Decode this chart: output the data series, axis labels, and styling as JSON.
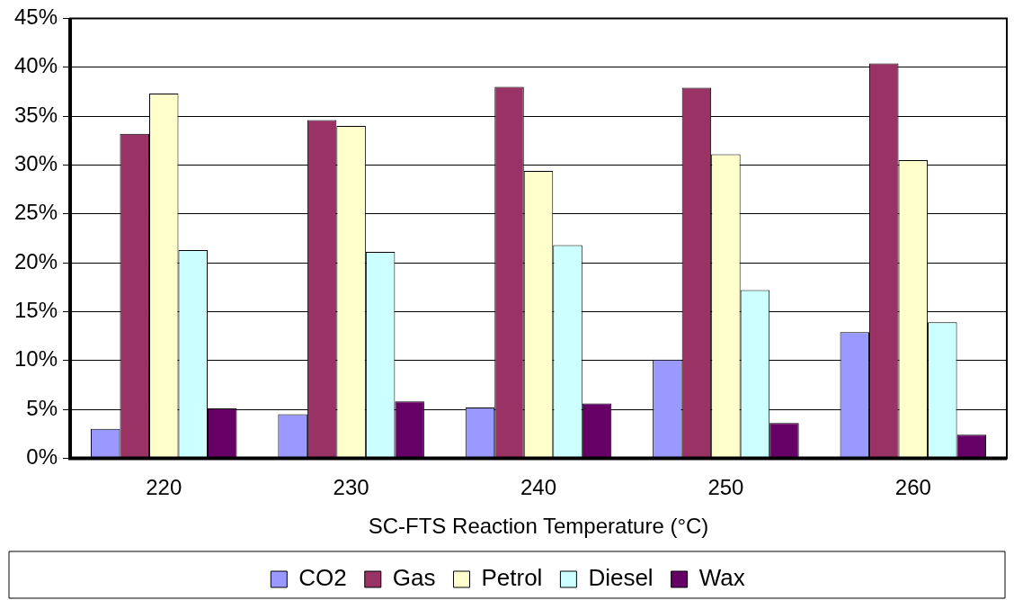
{
  "chart_data": {
    "type": "bar",
    "xlabel": "SC-FTS Reaction Temperature (°C)",
    "categories": [
      "220",
      "230",
      "240",
      "250",
      "260"
    ],
    "series": [
      {
        "name": "CO2",
        "color": "#9999ff",
        "values": [
          3.0,
          4.5,
          5.2,
          10.1,
          12.9
        ]
      },
      {
        "name": "Gas",
        "color": "#993366",
        "values": [
          33.2,
          34.6,
          38.0,
          37.9,
          40.4
        ]
      },
      {
        "name": "Petrol",
        "color": "#ffffcc",
        "values": [
          37.3,
          34.0,
          29.4,
          31.1,
          30.5
        ]
      },
      {
        "name": "Diesel",
        "color": "#ccffff",
        "values": [
          21.3,
          21.1,
          21.8,
          17.2,
          13.9
        ]
      },
      {
        "name": "Wax",
        "color": "#660066",
        "values": [
          5.1,
          5.8,
          5.6,
          3.6,
          2.4
        ]
      }
    ],
    "ylim": [
      0,
      45
    ],
    "yticks": [
      {
        "value": 0,
        "label": "0%"
      },
      {
        "value": 5,
        "label": "5%"
      },
      {
        "value": 10,
        "label": "10%"
      },
      {
        "value": 15,
        "label": "15%"
      },
      {
        "value": 20,
        "label": "20%"
      },
      {
        "value": 25,
        "label": "25%"
      },
      {
        "value": 30,
        "label": "30%"
      },
      {
        "value": 35,
        "label": "35%"
      },
      {
        "value": 40,
        "label": "40%"
      },
      {
        "value": 45,
        "label": "45%"
      }
    ],
    "grid": "y",
    "legend": "bottom"
  }
}
